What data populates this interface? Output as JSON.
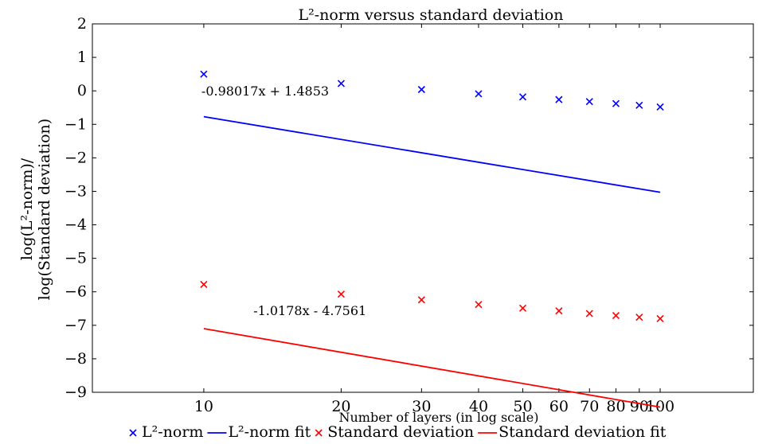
{
  "chart_data": {
    "type": "line",
    "title": "L²-norm versus standard deviation",
    "xlabel": "Number of layers (in log scale)",
    "ylabel_line1": "log(L²-norm)/",
    "ylabel_line2": "log(Standard deviation)",
    "x_scale": "log",
    "xlim": [
      5.7,
      160
    ],
    "ylim": [
      -9,
      2
    ],
    "x_ticks": [
      10,
      20,
      30,
      40,
      50,
      60,
      70,
      80,
      90,
      100
    ],
    "x_tick_labels": [
      "10",
      "20",
      "30",
      "40",
      "50",
      "60",
      "70",
      "80",
      "90",
      "100"
    ],
    "y_ticks": [
      2,
      1,
      0,
      -1,
      -2,
      -3,
      -4,
      -5,
      -6,
      -7,
      -8,
      -9
    ],
    "y_tick_labels": [
      "2",
      "1",
      "0",
      "−1",
      "−2",
      "−3",
      "−4",
      "−5",
      "−6",
      "−7",
      "−8",
      "−9"
    ],
    "grid": false,
    "legend_position": "bottom",
    "x": [
      10,
      20,
      30,
      40,
      50,
      60,
      70,
      80,
      90,
      100
    ],
    "series": [
      {
        "name": "L²-norm",
        "kind": "markers",
        "marker": "x",
        "color": "#0000ff",
        "values": [
          0.5,
          0.22,
          0.04,
          -0.09,
          -0.18,
          -0.26,
          -0.32,
          -0.38,
          -0.43,
          -0.48
        ]
      },
      {
        "name": "L²-norm fit",
        "kind": "line",
        "color": "#0000ff",
        "slope": -0.98017,
        "intercept": 1.4853
      },
      {
        "name": "Standard deviation",
        "kind": "markers",
        "marker": "x",
        "color": "#ff0000",
        "values": [
          -5.78,
          -6.07,
          -6.24,
          -6.38,
          -6.49,
          -6.57,
          -6.65,
          -6.71,
          -6.76,
          -6.8
        ]
      },
      {
        "name": "Standard deviation fit",
        "kind": "line",
        "color": "#ff0000",
        "slope": -1.0178,
        "intercept": -4.7561
      }
    ],
    "annotations": [
      {
        "text": "-0.98017x + 1.4853",
        "x": 10,
        "y": -0.02
      },
      {
        "text": "-1.0178x - 4.7561",
        "x": 13,
        "y": -6.58
      }
    ]
  }
}
